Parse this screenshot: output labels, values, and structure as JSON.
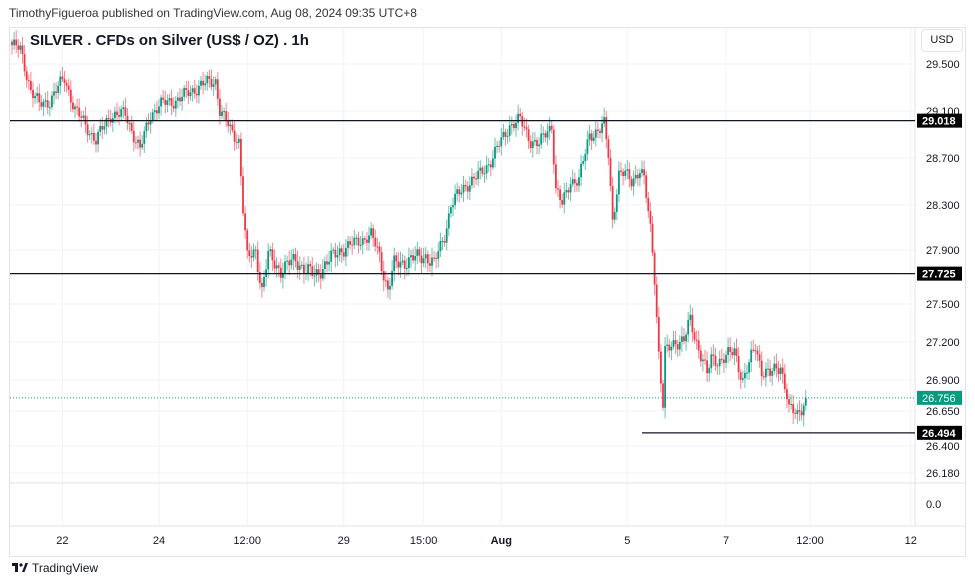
{
  "header": {
    "published": "TimothyFigueroa published on TradingView.com, Aug 08, 2024 09:35 UTC+8"
  },
  "footer": {
    "logo": "TradingView"
  },
  "chart_data": {
    "type": "candlestick",
    "title": "SILVER . CFDs on Silver (US$ / OZ) . 1h",
    "currency": "USD",
    "y_ticks": [
      29.5,
      29.1,
      28.7,
      28.3,
      27.9,
      27.5,
      27.2,
      26.9,
      26.65,
      26.4,
      26.18
    ],
    "y_tick_labels": [
      "29.500",
      "29.100",
      "28.700",
      "28.300",
      "27.900",
      "27.500",
      "27.200",
      "26.900",
      "26.650",
      "26.400",
      "26.180"
    ],
    "lower_pane_tick": "0.0",
    "x_ticks": [
      {
        "bar": 24,
        "label": "22"
      },
      {
        "bar": 70,
        "label": "24"
      },
      {
        "bar": 112,
        "label": "12:00"
      },
      {
        "bar": 158,
        "label": "29"
      },
      {
        "bar": 196,
        "label": "15:00"
      },
      {
        "bar": 233,
        "label": "Aug"
      },
      {
        "bar": 293,
        "label": "5"
      },
      {
        "bar": 340,
        "label": "7"
      },
      {
        "bar": 380,
        "label": "12:00"
      },
      {
        "bar": 428,
        "label": "12"
      }
    ],
    "close_path": [
      [
        0,
        29.66
      ],
      [
        4,
        29.62
      ],
      [
        9,
        29.28
      ],
      [
        13,
        29.15
      ],
      [
        18,
        29.19
      ],
      [
        25,
        29.38
      ],
      [
        30,
        29.11
      ],
      [
        40,
        28.85
      ],
      [
        47,
        29.07
      ],
      [
        54,
        29.07
      ],
      [
        61,
        28.77
      ],
      [
        66,
        29.07
      ],
      [
        70,
        29.15
      ],
      [
        78,
        29.19
      ],
      [
        82,
        29.23
      ],
      [
        90,
        29.32
      ],
      [
        97,
        29.36
      ],
      [
        99,
        29.11
      ],
      [
        104,
        28.94
      ],
      [
        108,
        28.85
      ],
      [
        110,
        28.26
      ],
      [
        112,
        27.83
      ],
      [
        116,
        27.9
      ],
      [
        119,
        27.6
      ],
      [
        122,
        27.86
      ],
      [
        128,
        27.75
      ],
      [
        135,
        27.83
      ],
      [
        140,
        27.75
      ],
      [
        144,
        27.71
      ],
      [
        149,
        27.79
      ],
      [
        156,
        27.9
      ],
      [
        161,
        27.94
      ],
      [
        166,
        27.99
      ],
      [
        171,
        28.03
      ],
      [
        175,
        27.86
      ],
      [
        179,
        27.6
      ],
      [
        182,
        27.79
      ],
      [
        190,
        27.83
      ],
      [
        197,
        27.86
      ],
      [
        201,
        27.79
      ],
      [
        206,
        28.03
      ],
      [
        209,
        28.3
      ],
      [
        216,
        28.47
      ],
      [
        223,
        28.56
      ],
      [
        228,
        28.68
      ],
      [
        232,
        28.81
      ],
      [
        237,
        28.98
      ],
      [
        242,
        29.02
      ],
      [
        247,
        28.85
      ],
      [
        251,
        28.81
      ],
      [
        255,
        28.94
      ],
      [
        257,
        28.98
      ],
      [
        259,
        28.43
      ],
      [
        262,
        28.3
      ],
      [
        266,
        28.51
      ],
      [
        270,
        28.51
      ],
      [
        275,
        28.9
      ],
      [
        280,
        28.94
      ],
      [
        282,
        28.98
      ],
      [
        284,
        28.73
      ],
      [
        286,
        28.17
      ],
      [
        289,
        28.56
      ],
      [
        292,
        28.56
      ],
      [
        295,
        28.51
      ],
      [
        299,
        28.6
      ],
      [
        301,
        28.51
      ],
      [
        304,
        28.09
      ],
      [
        306,
        27.71
      ],
      [
        308,
        27.11
      ],
      [
        310,
        26.69
      ],
      [
        311,
        27.11
      ],
      [
        316,
        27.21
      ],
      [
        320,
        27.21
      ],
      [
        323,
        27.37
      ],
      [
        325,
        27.25
      ],
      [
        329,
        27.06
      ],
      [
        331,
        26.94
      ],
      [
        333,
        27.06
      ],
      [
        337,
        27.06
      ],
      [
        342,
        27.1
      ],
      [
        344,
        27.13
      ],
      [
        348,
        26.9
      ],
      [
        351,
        27.02
      ],
      [
        354,
        27.17
      ],
      [
        357,
        26.98
      ],
      [
        361,
        26.94
      ],
      [
        366,
        27.02
      ],
      [
        369,
        26.78
      ],
      [
        370,
        26.66
      ],
      [
        374,
        26.62
      ],
      [
        378,
        26.756
      ]
    ],
    "horizontal_lines": [
      {
        "price": 29.018,
        "label": "29.018"
      },
      {
        "price": 27.725,
        "label": "27.725"
      },
      {
        "price": 26.494,
        "label": "26.494",
        "from_bar": 300
      }
    ],
    "last_price": {
      "price": 26.756,
      "label": "26.756"
    },
    "colors": {
      "up": "#089981",
      "down": "#f23645",
      "last": "#089981",
      "line": "#131722"
    }
  }
}
